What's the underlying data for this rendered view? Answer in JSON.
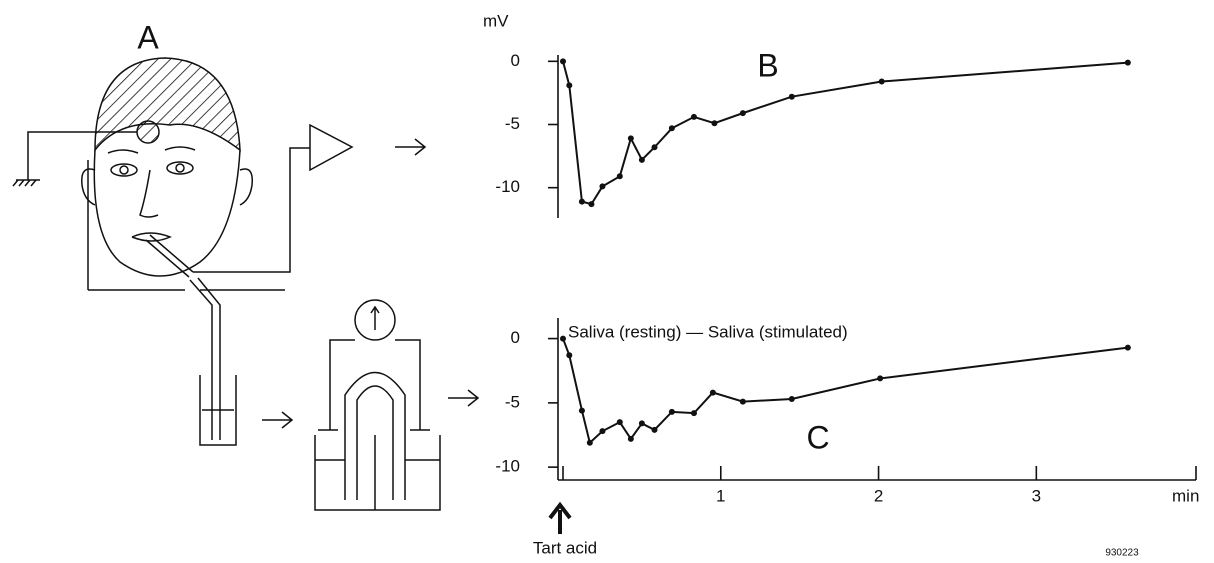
{
  "panel_a": {
    "label": "A"
  },
  "figure_code": "930223",
  "chart_data": [
    {
      "type": "line",
      "label": "B",
      "y_label": "mV",
      "color": "#111111",
      "x": [
        0,
        0.04,
        0.12,
        0.18,
        0.25,
        0.36,
        0.43,
        0.5,
        0.58,
        0.69,
        0.83,
        0.96,
        1.14,
        1.45,
        2.02,
        3.58
      ],
      "values": [
        0,
        -1.9,
        -11.1,
        -11.3,
        -9.9,
        -9.1,
        -6.1,
        -7.8,
        -6.8,
        -5.3,
        -4.4,
        -4.9,
        -4.1,
        -2.8,
        -1.6,
        -0.1
      ],
      "xlim": [
        0,
        4.05
      ],
      "ylim": [
        -12.4,
        0.5
      ],
      "yticks": [
        0,
        -5,
        -10
      ]
    },
    {
      "type": "line",
      "label": "C",
      "annotation": "Saliva (resting) — Saliva (stimulated)",
      "x_label": "min",
      "marker_label": "Tart acid",
      "color": "#111111",
      "x": [
        0,
        0.04,
        0.12,
        0.17,
        0.25,
        0.36,
        0.43,
        0.5,
        0.58,
        0.69,
        0.83,
        0.95,
        1.14,
        1.45,
        2.01,
        3.58
      ],
      "values": [
        0,
        -1.3,
        -5.6,
        -8.1,
        -7.2,
        -6.5,
        -7.8,
        -6.6,
        -7.1,
        -5.7,
        -5.8,
        -4.2,
        -4.9,
        -4.7,
        -3.1,
        -0.7
      ],
      "xlim": [
        0,
        4.05
      ],
      "ylim": [
        -11,
        1.6
      ],
      "yticks": [
        0,
        -5,
        -10
      ],
      "xticks": [
        0,
        1,
        2,
        3
      ]
    }
  ]
}
